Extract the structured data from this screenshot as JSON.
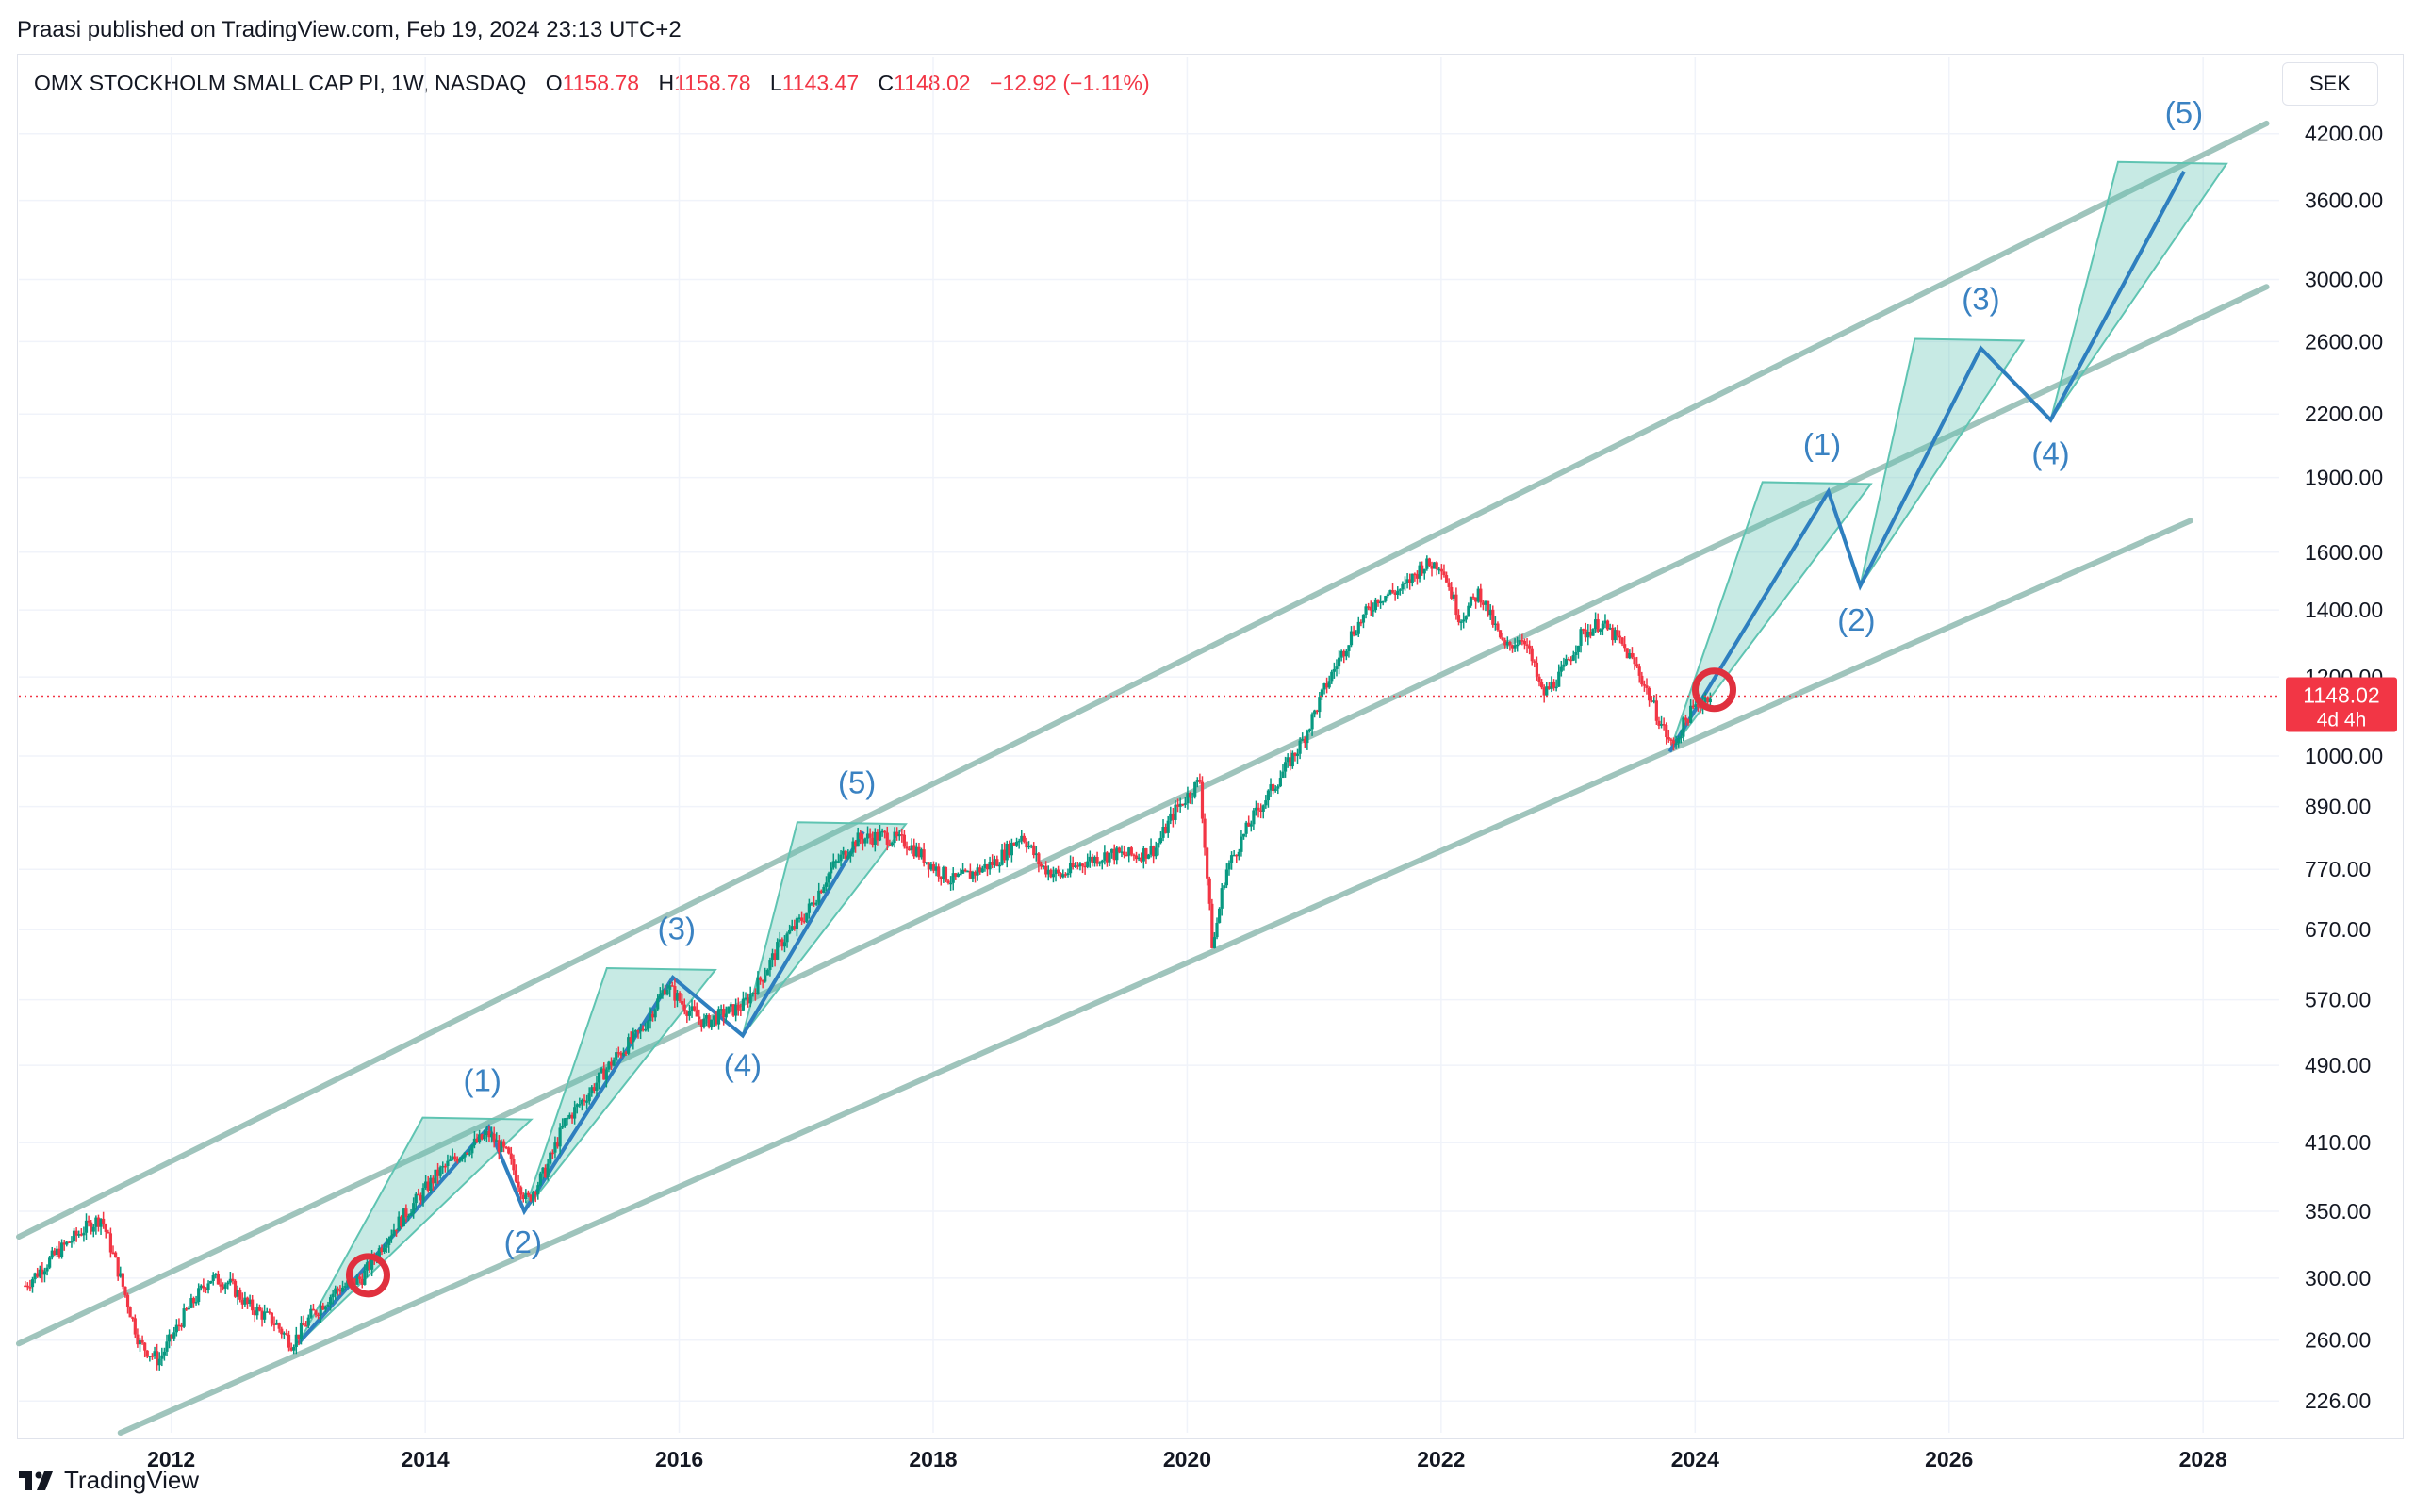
{
  "header": {
    "publish_line": "Praasi published on TradingView.com, Feb 19, 2024 23:13 UTC+2"
  },
  "legend": {
    "symbol": "OMX STOCKHOLM SMALL CAP PI, 1W, NASDAQ",
    "open_label": "O",
    "open": "1158.78",
    "high_label": "H",
    "high": "1158.78",
    "low_label": "L",
    "low": "1143.47",
    "close_label": "C",
    "close": "1148.02",
    "change": "−12.92 (−1.11%)"
  },
  "currency": "SEK",
  "price_badge": {
    "price": "1148.02",
    "countdown": "4d 4h"
  },
  "footer": {
    "brand": "TradingView"
  },
  "colors": {
    "up": "#089981",
    "down": "#f23645",
    "channel": "#9fc4bc",
    "wave_line": "#2e7fbf",
    "wave_fill": "#5fc4b2",
    "wave_label": "#3a82c2",
    "marker": "#e0303e",
    "grid": "#f0f3fa"
  },
  "chart_data": {
    "type": "candlestick",
    "interval": "1W",
    "scale": "log",
    "ylim": [
      210,
      4500
    ],
    "xlim": [
      2010.8,
      2028.6
    ],
    "y_ticks": [
      "4200.00",
      "3600.00",
      "3000.00",
      "2600.00",
      "2200.00",
      "1900.00",
      "1600.00",
      "1400.00",
      "1200.00",
      "1000.00",
      "890.00",
      "770.00",
      "670.00",
      "570.00",
      "490.00",
      "410.00",
      "350.00",
      "300.00",
      "260.00",
      "226.00"
    ],
    "x_ticks": [
      "2012",
      "2014",
      "2016",
      "2018",
      "2020",
      "2022",
      "2024",
      "2026",
      "2028"
    ],
    "last_price": 1148.02,
    "price_path": [
      [
        2010.85,
        295
      ],
      [
        2011.1,
        318
      ],
      [
        2011.3,
        335
      ],
      [
        2011.45,
        345
      ],
      [
        2011.6,
        300
      ],
      [
        2011.75,
        258
      ],
      [
        2011.9,
        248
      ],
      [
        2012.1,
        275
      ],
      [
        2012.3,
        300
      ],
      [
        2012.45,
        297
      ],
      [
        2012.6,
        282
      ],
      [
        2012.8,
        272
      ],
      [
        2012.95,
        258
      ],
      [
        2013.1,
        275
      ],
      [
        2013.3,
        292
      ],
      [
        2013.5,
        300
      ],
      [
        2013.7,
        330
      ],
      [
        2013.9,
        355
      ],
      [
        2014.1,
        382
      ],
      [
        2014.3,
        402
      ],
      [
        2014.5,
        418
      ],
      [
        2014.65,
        398
      ],
      [
        2014.8,
        358
      ],
      [
        2014.95,
        385
      ],
      [
        2015.1,
        430
      ],
      [
        2015.3,
        462
      ],
      [
        2015.5,
        500
      ],
      [
        2015.7,
        530
      ],
      [
        2015.9,
        590
      ],
      [
        2016.05,
        560
      ],
      [
        2016.2,
        540
      ],
      [
        2016.35,
        552
      ],
      [
        2016.5,
        562
      ],
      [
        2016.65,
        600
      ],
      [
        2016.8,
        650
      ],
      [
        2017.0,
        695
      ],
      [
        2017.2,
        772
      ],
      [
        2017.4,
        825
      ],
      [
        2017.6,
        832
      ],
      [
        2017.8,
        818
      ],
      [
        2018.0,
        775
      ],
      [
        2018.15,
        750
      ],
      [
        2018.3,
        762
      ],
      [
        2018.5,
        785
      ],
      [
        2018.7,
        835
      ],
      [
        2018.85,
        775
      ],
      [
        2019.0,
        758
      ],
      [
        2019.2,
        785
      ],
      [
        2019.4,
        798
      ],
      [
        2019.6,
        795
      ],
      [
        2019.75,
        808
      ],
      [
        2019.9,
        880
      ],
      [
        2020.1,
        945
      ],
      [
        2020.2,
        640
      ],
      [
        2020.3,
        765
      ],
      [
        2020.5,
        860
      ],
      [
        2020.7,
        940
      ],
      [
        2020.9,
        1030
      ],
      [
        2021.1,
        1180
      ],
      [
        2021.3,
        1330
      ],
      [
        2021.5,
        1440
      ],
      [
        2021.7,
        1470
      ],
      [
        2021.85,
        1550
      ],
      [
        2022.0,
        1560
      ],
      [
        2022.15,
        1370
      ],
      [
        2022.3,
        1460
      ],
      [
        2022.5,
        1280
      ],
      [
        2022.65,
        1320
      ],
      [
        2022.8,
        1150
      ],
      [
        2022.95,
        1210
      ],
      [
        2023.1,
        1320
      ],
      [
        2023.25,
        1360
      ],
      [
        2023.4,
        1305
      ],
      [
        2023.55,
        1220
      ],
      [
        2023.7,
        1100
      ],
      [
        2023.82,
        1020
      ],
      [
        2023.95,
        1100
      ],
      [
        2024.1,
        1150
      ],
      [
        2024.13,
        1148
      ]
    ],
    "channel_lines": [
      {
        "from": [
          2010.8,
          330
        ],
        "to": [
          2028.5,
          4300
        ]
      },
      {
        "from": [
          2010.8,
          258
        ],
        "to": [
          2028.5,
          2950
        ]
      },
      {
        "from": [
          2011.6,
          210
        ],
        "to": [
          2027.9,
          1720
        ]
      }
    ],
    "wave_paths": [
      [
        [
          2013.0,
          258
        ],
        [
          2014.5,
          425
        ],
        [
          2014.78,
          350
        ],
        [
          2015.95,
          600
        ],
        [
          2016.5,
          525
        ],
        [
          2017.45,
          840
        ]
      ],
      [
        [
          2023.8,
          1010
        ],
        [
          2025.05,
          1840
        ],
        [
          2025.3,
          1480
        ],
        [
          2026.25,
          2560
        ],
        [
          2026.8,
          2170
        ],
        [
          2027.85,
          3850
        ]
      ]
    ],
    "wave_labels": [
      {
        "text": "(1)",
        "x": 2014.45,
        "y": 462
      },
      {
        "text": "(2)",
        "x": 2014.77,
        "y": 318
      },
      {
        "text": "(3)",
        "x": 2015.98,
        "y": 655
      },
      {
        "text": "(4)",
        "x": 2016.5,
        "y": 478
      },
      {
        "text": "(5)",
        "x": 2017.4,
        "y": 918
      },
      {
        "text": "(1)",
        "x": 2025.0,
        "y": 2000
      },
      {
        "text": "(2)",
        "x": 2025.27,
        "y": 1335
      },
      {
        "text": "(3)",
        "x": 2026.25,
        "y": 2800
      },
      {
        "text": "(4)",
        "x": 2026.8,
        "y": 1960
      },
      {
        "text": "(5)",
        "x": 2027.85,
        "y": 4300
      }
    ],
    "markers": [
      {
        "x": 2013.55,
        "y": 302
      },
      {
        "x": 2024.15,
        "y": 1165
      }
    ]
  }
}
